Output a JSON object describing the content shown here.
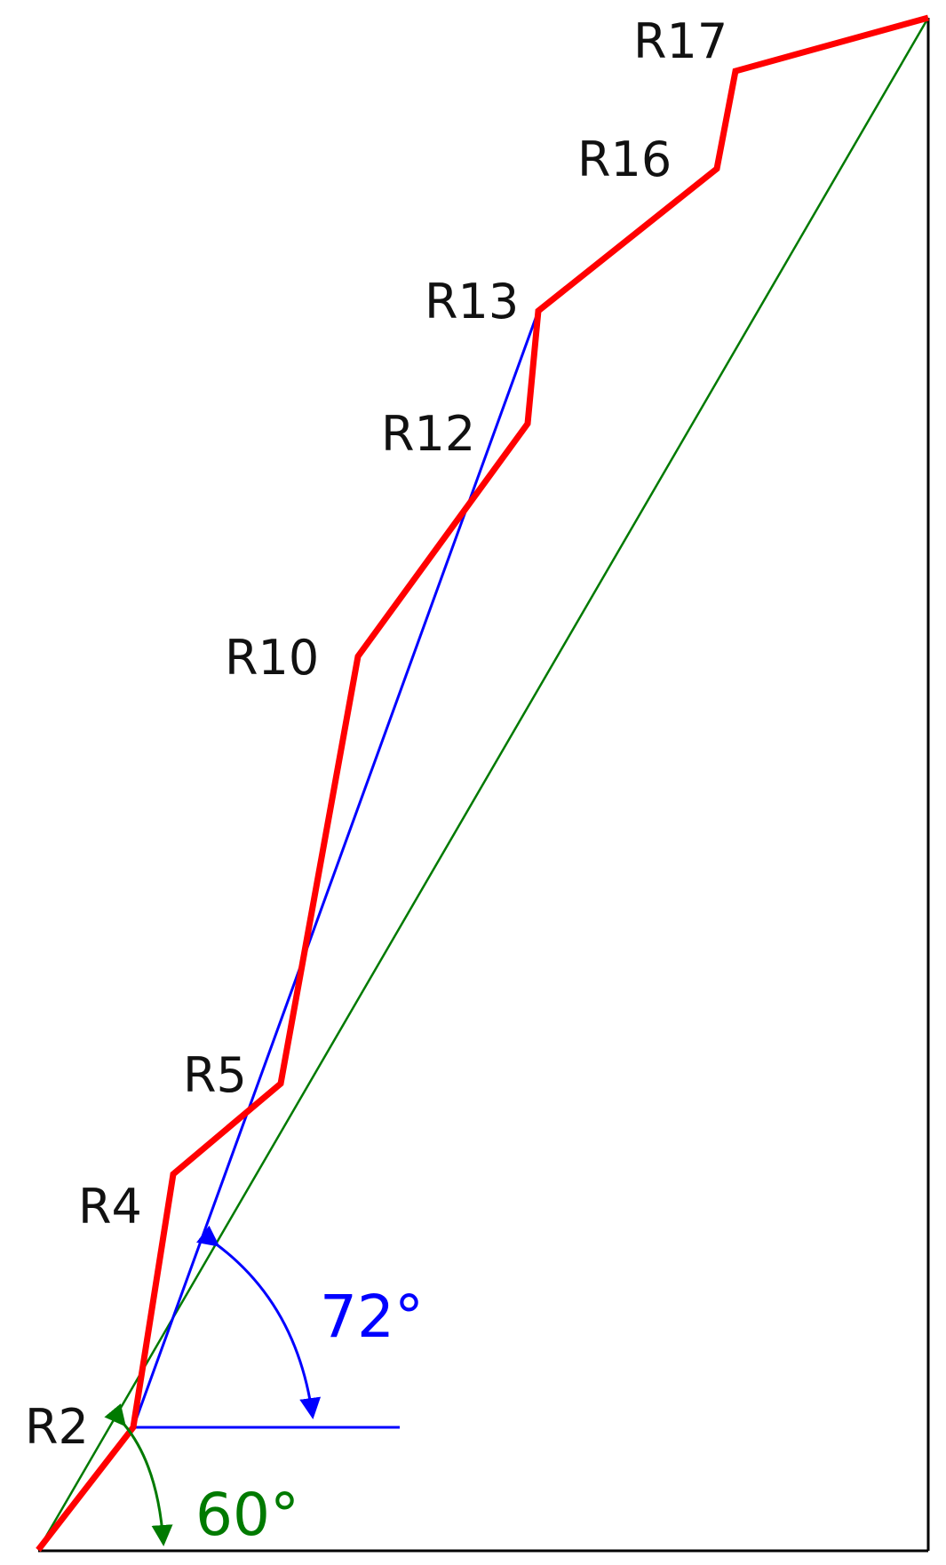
{
  "labels": {
    "r2": "R2",
    "r4": "R4",
    "r5": "R5",
    "r10": "R10",
    "r12": "R12",
    "r13": "R13",
    "r16": "R16",
    "r17": "R17"
  },
  "angles": {
    "blue": "72°",
    "green": "60°"
  },
  "colors": {
    "path": "#ff0000",
    "blue_line": "#0000ff",
    "green_line": "#007a00",
    "frame": "#000000"
  }
}
